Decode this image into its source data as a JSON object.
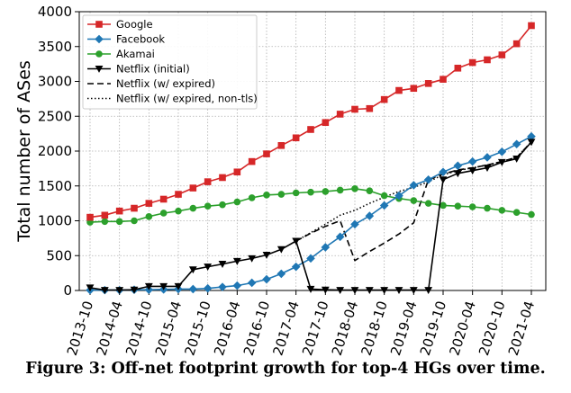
{
  "caption": "Figure 3: Off-net footprint growth for top-4 HGs over time.",
  "chart_data": {
    "type": "line",
    "title": "",
    "xlabel": "",
    "ylabel": "Total number of ASes",
    "ylim": [
      0,
      4000
    ],
    "yticks": [
      0,
      500,
      1000,
      1500,
      2000,
      2500,
      3000,
      3500,
      4000
    ],
    "x_tick_labels": [
      "2013-10",
      "2014-04",
      "2014-10",
      "2015-04",
      "2015-10",
      "2016-04",
      "2016-10",
      "2017-04",
      "2017-10",
      "2018-04",
      "2018-10",
      "2019-04",
      "2019-10",
      "2020-04",
      "2020-10",
      "2021-04"
    ],
    "grid": true,
    "legend_position": "top-left",
    "x": [
      "2013-10",
      "2014-01",
      "2014-04",
      "2014-07",
      "2014-10",
      "2015-01",
      "2015-04",
      "2015-07",
      "2015-10",
      "2016-01",
      "2016-04",
      "2016-07",
      "2016-10",
      "2017-01",
      "2017-04",
      "2017-07",
      "2017-10",
      "2018-01",
      "2018-04",
      "2018-07",
      "2018-10",
      "2019-01",
      "2019-04",
      "2019-07",
      "2019-10",
      "2020-01",
      "2020-04",
      "2020-07",
      "2020-10",
      "2021-01",
      "2021-04"
    ],
    "series": [
      {
        "name": "Google",
        "color": "#d62728",
        "marker": "square",
        "dash": "solid",
        "values": [
          1050,
          1080,
          1140,
          1180,
          1250,
          1310,
          1380,
          1470,
          1560,
          1620,
          1700,
          1850,
          1960,
          2080,
          2190,
          2310,
          2410,
          2530,
          2600,
          2610,
          2740,
          2870,
          2900,
          2970,
          3030,
          3190,
          3270,
          3310,
          3380,
          3540,
          3800
        ]
      },
      {
        "name": "Facebook",
        "color": "#1f77b4",
        "marker": "diamond",
        "dash": "solid",
        "values": [
          5,
          5,
          5,
          10,
          10,
          15,
          20,
          20,
          30,
          50,
          70,
          110,
          160,
          240,
          340,
          460,
          620,
          770,
          950,
          1070,
          1220,
          1360,
          1510,
          1590,
          1700,
          1790,
          1850,
          1910,
          1990,
          2100,
          2210
        ]
      },
      {
        "name": "Akamai",
        "color": "#2ca02c",
        "marker": "circle",
        "dash": "solid",
        "values": [
          980,
          990,
          990,
          1000,
          1060,
          1110,
          1140,
          1180,
          1210,
          1230,
          1270,
          1330,
          1370,
          1380,
          1400,
          1410,
          1420,
          1440,
          1460,
          1430,
          1360,
          1320,
          1290,
          1250,
          1220,
          1210,
          1200,
          1180,
          1150,
          1120,
          1090
        ]
      },
      {
        "name": "Netflix (initial)",
        "color": "#000000",
        "marker": "triangle-down",
        "dash": "solid",
        "values": [
          40,
          5,
          5,
          10,
          60,
          60,
          60,
          300,
          340,
          380,
          420,
          460,
          510,
          590,
          710,
          20,
          10,
          5,
          5,
          5,
          5,
          5,
          5,
          5,
          1590,
          1680,
          1720,
          1760,
          1840,
          1890,
          2130
        ]
      },
      {
        "name": "Netflix (w/ expired)",
        "color": "#000000",
        "marker": "none",
        "dash": "dashed",
        "values": [
          null,
          null,
          null,
          null,
          null,
          null,
          null,
          null,
          null,
          null,
          null,
          null,
          null,
          null,
          710,
          820,
          920,
          1000,
          430,
          560,
          680,
          810,
          970,
          1590,
          1670,
          1730,
          1760,
          1800,
          1850,
          1910,
          2130
        ]
      },
      {
        "name": "Netflix (w/ expired, non-tls)",
        "color": "#000000",
        "marker": "none",
        "dash": "dotted",
        "values": [
          null,
          null,
          null,
          null,
          null,
          null,
          null,
          null,
          null,
          null,
          null,
          null,
          null,
          null,
          710,
          830,
          950,
          1080,
          1150,
          1250,
          1340,
          1420,
          1480,
          1560,
          1660,
          1720,
          1760,
          1800,
          1850,
          1910,
          2130
        ]
      }
    ]
  }
}
